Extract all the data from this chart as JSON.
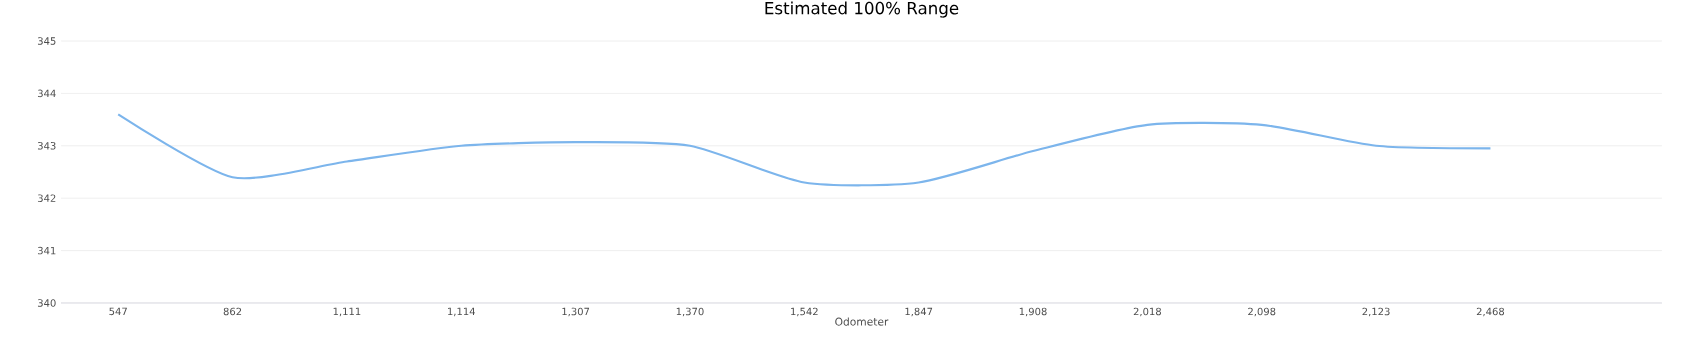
{
  "chart_data": {
    "type": "line",
    "title": "Estimated 100% Range",
    "xlabel": "Odometer",
    "categories": [
      "547",
      "862",
      "1,111",
      "1,114",
      "1,307",
      "1,370",
      "1,542",
      "1,847",
      "1,908",
      "2,018",
      "2,098",
      "2,123",
      "2,468",
      null
    ],
    "values": [
      343.6,
      342.4,
      342.7,
      343.0,
      343.07,
      343.0,
      342.3,
      342.3,
      342.9,
      343.4,
      343.4,
      343.0,
      342.95,
      null
    ],
    "color": "#7cb5ec",
    "ylim": [
      340,
      345
    ],
    "yticks": [
      340,
      341,
      342,
      343,
      344,
      345
    ],
    "grid": "y",
    "marker": "none",
    "line_style": "solid"
  }
}
